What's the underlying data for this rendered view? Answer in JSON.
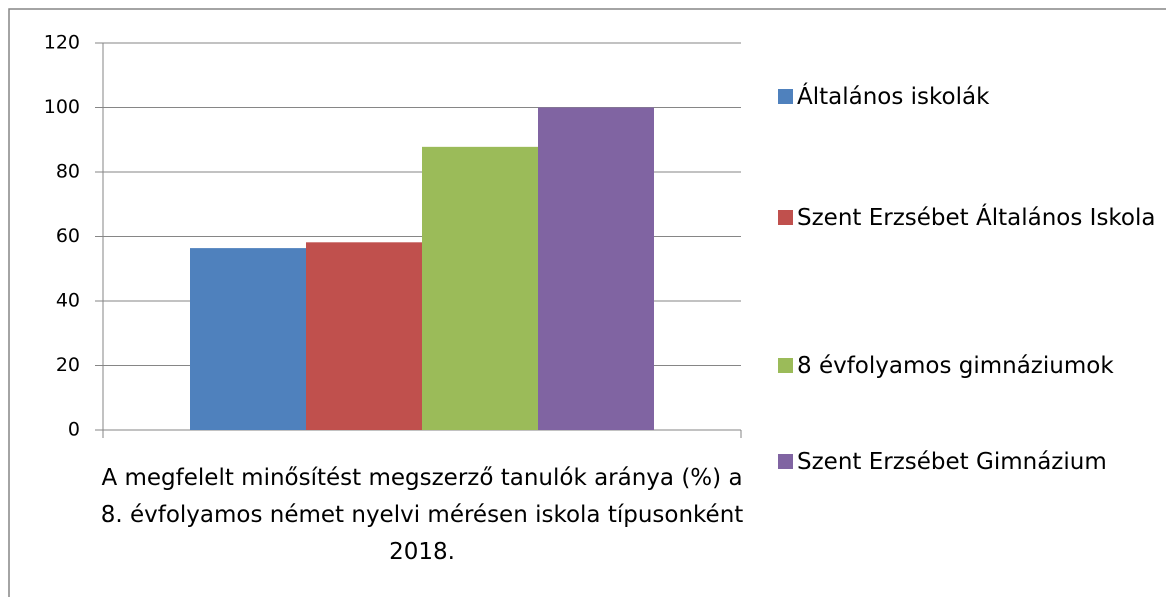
{
  "chart_data": {
    "type": "bar",
    "categories": [
      "A megfelelt minősítést megszerző tanulók aránya (%) a 8. évfolyamos német nyelvi mérésen iskola típusonként 2018."
    ],
    "series": [
      {
        "name": "Általános iskolák",
        "color": "#4f81bd",
        "values": [
          56.4
        ]
      },
      {
        "name": "Szent Erzsébet Általános Iskola",
        "color": "#c0504d",
        "values": [
          58.2
        ]
      },
      {
        "name": "8 évfolyamos gimnáziumok",
        "color": "#9bbb59",
        "values": [
          87.8
        ]
      },
      {
        "name": "Szent Erzsébet Gimnázium",
        "color": "#8064a2",
        "values": [
          100
        ]
      }
    ],
    "ylim": [
      0,
      120
    ],
    "yticks": [
      0,
      20,
      40,
      60,
      80,
      100,
      120
    ],
    "grid": true,
    "legend": "right"
  }
}
